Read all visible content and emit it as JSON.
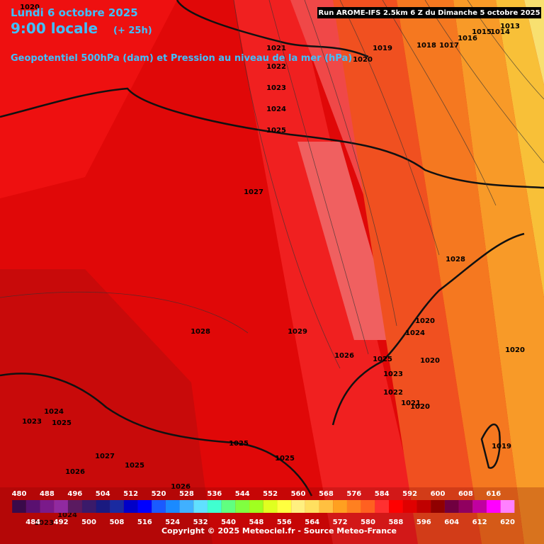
{
  "header": {
    "date": "Lundi 6 octobre 2025",
    "time": "9:00 locale",
    "lead": "(+ 25h)",
    "subtitle": "Geopotentiel 500hPa (dam) et Pression au niveau de la mer (hPa)",
    "run": "Run AROME-IFS 2.5km 6 Z du Dimanche 5 octobre 2025"
  },
  "isobars": [
    1020,
    1021,
    1022,
    1023,
    1024,
    1025,
    1019,
    1020,
    1018,
    1017,
    1016,
    1015,
    1014,
    1013,
    1027,
    1028,
    1028,
    1029,
    1026,
    1025,
    1020,
    1024,
    1020,
    1020,
    1023,
    1022,
    1021,
    1020,
    1019,
    1025,
    1025,
    1024,
    1023,
    1025,
    1027,
    1025,
    1026,
    1026,
    1024,
    1023
  ],
  "legend": {
    "values": [
      480,
      484,
      488,
      492,
      496,
      500,
      504,
      508,
      512,
      516,
      520,
      524,
      528,
      532,
      536,
      540,
      544,
      548,
      552,
      556,
      560,
      564,
      568,
      572,
      576,
      580,
      584,
      588,
      592,
      596,
      600,
      604,
      608,
      612,
      616,
      620
    ],
    "colors": [
      "#3a0a4a",
      "#5a1070",
      "#7a1a8a",
      "#902aa0",
      "#5a1a60",
      "#3a1a6a",
      "#1a1a80",
      "#1a2aa0",
      "#0000c8",
      "#0000ff",
      "#1a5aff",
      "#1a8aff",
      "#40b0ff",
      "#60e0ff",
      "#40ffd0",
      "#60ff80",
      "#80ff40",
      "#a0ff20",
      "#e0ff20",
      "#ffff40",
      "#fff080",
      "#ffe060",
      "#ffc040",
      "#ffa020",
      "#ff8020",
      "#ff6020",
      "#ff3030",
      "#ff0000",
      "#e00000",
      "#c00000",
      "#900000",
      "#700040",
      "#900060",
      "#c000a0",
      "#ff00ff",
      "#ff80ff"
    ]
  },
  "footer": {
    "copyright": "Copyright © 2025 Meteociel.fr - Source Meteo-France"
  }
}
